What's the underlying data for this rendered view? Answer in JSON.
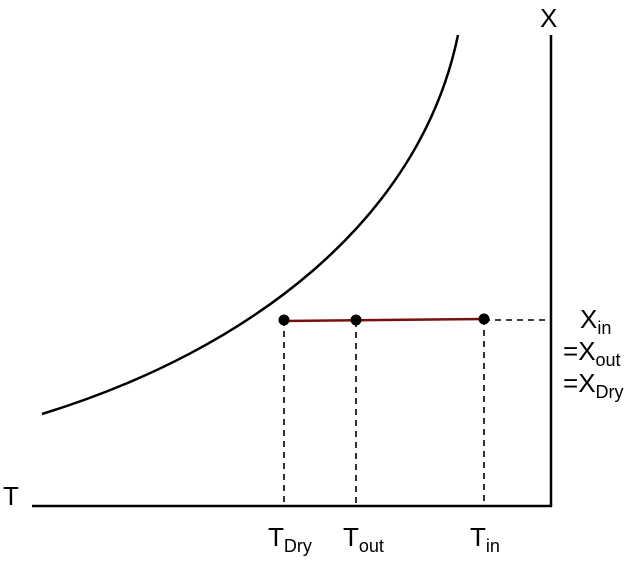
{
  "axes": {
    "y_label": "X",
    "x_label": "T"
  },
  "humidity_label": {
    "line1": {
      "base": "X",
      "sub": "in"
    },
    "line2": {
      "prefix": "=",
      "base": "X",
      "sub": "out"
    },
    "line3": {
      "prefix": "=",
      "base": "X",
      "sub": "Dry"
    }
  },
  "tick_labels": {
    "t_dry": {
      "base": "T",
      "sub": "Dry"
    },
    "t_out": {
      "base": "T",
      "sub": "out"
    },
    "t_in": {
      "base": "T",
      "sub": "in"
    }
  },
  "colors": {
    "process_line": "#7a1010",
    "axes": "#000000",
    "points": "#000000"
  }
}
